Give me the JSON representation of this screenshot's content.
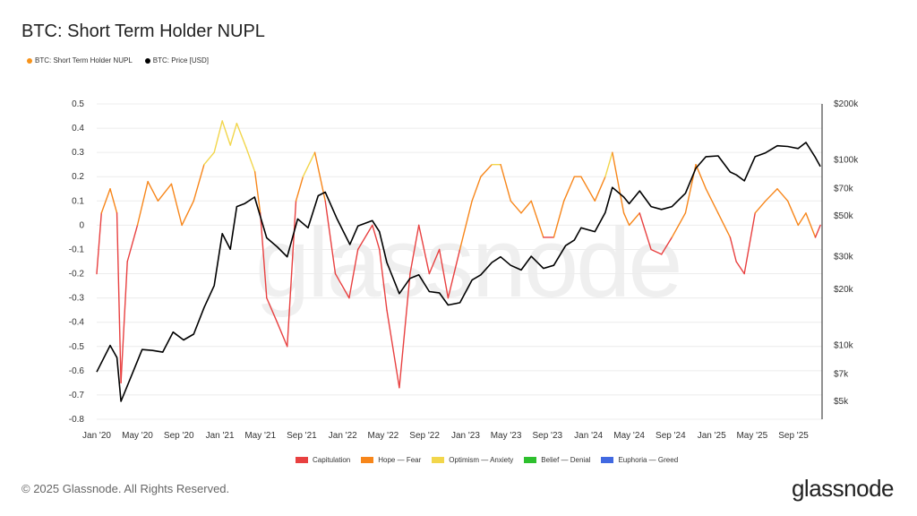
{
  "title": "BTC: Short Term Holder NUPL",
  "legend_top": [
    {
      "label": "BTC: Short Term Holder NUPL",
      "color": "#f7931a"
    },
    {
      "label": "BTC: Price [USD]",
      "color": "#000000"
    }
  ],
  "legend_bottom": [
    {
      "label": "Capitulation",
      "color": "#e84040"
    },
    {
      "label": "Hope — Fear",
      "color": "#f7861a"
    },
    {
      "label": "Optimism — Anxiety",
      "color": "#f2d64b"
    },
    {
      "label": "Belief — Denial",
      "color": "#2ec02e"
    },
    {
      "label": "Euphoria — Greed",
      "color": "#4169e1"
    }
  ],
  "footer": "© 2025 Glassnode. All Rights Reserved.",
  "brand": "glassnode",
  "watermark": "glassnode",
  "chart_data": {
    "type": "line",
    "title": "BTC: Short Term Holder NUPL",
    "x_ticks": [
      "Jan '20",
      "May '20",
      "Sep '20",
      "Jan '21",
      "May '21",
      "Sep '21",
      "Jan '22",
      "May '22",
      "Sep '22",
      "Jan '23",
      "May '23",
      "Sep '23",
      "Jan '24",
      "May '24",
      "Sep '24",
      "Jan '25",
      "May '25",
      "Sep '25"
    ],
    "y_left": {
      "ticks": [
        "0.5",
        "0.4",
        "0.3",
        "0.2",
        "0.1",
        "0",
        "-0.1",
        "-0.2",
        "-0.3",
        "-0.4",
        "-0.5",
        "-0.6",
        "-0.7",
        "-0.8"
      ],
      "range": [
        -0.8,
        0.5
      ]
    },
    "y_right": {
      "scale": "log",
      "ticks": [
        {
          "v": 200000,
          "label": "$200k"
        },
        {
          "v": 100000,
          "label": "$100k"
        },
        {
          "v": 70000,
          "label": "$70k"
        },
        {
          "v": 50000,
          "label": "$50k"
        },
        {
          "v": 30000,
          "label": "$30k"
        },
        {
          "v": 20000,
          "label": "$20k"
        },
        {
          "v": 10000,
          "label": "$10k"
        },
        {
          "v": 7000,
          "label": "$7k"
        },
        {
          "v": 5000,
          "label": "$5k"
        }
      ],
      "range": [
        5000,
        200000
      ]
    },
    "x_range": [
      "2020-01-01",
      "2025-11-25"
    ],
    "zones": [
      {
        "name": "Capitulation",
        "max": 0
      },
      {
        "name": "Hope — Fear",
        "max": 0.25
      },
      {
        "name": "Optimism — Anxiety",
        "max": 0.5
      },
      {
        "name": "Belief — Denial",
        "max": 0.75
      },
      {
        "name": "Euphoria — Greed",
        "max": 1
      }
    ],
    "series": [
      {
        "name": "BTC: Short Term Holder NUPL",
        "axis": "left",
        "points": [
          [
            "2020-01-01",
            -0.2
          ],
          [
            "2020-01-15",
            0.05
          ],
          [
            "2020-02-10",
            0.15
          ],
          [
            "2020-03-01",
            0.05
          ],
          [
            "2020-03-13",
            -0.65
          ],
          [
            "2020-04-01",
            -0.15
          ],
          [
            "2020-05-01",
            0.0
          ],
          [
            "2020-06-01",
            0.18
          ],
          [
            "2020-07-01",
            0.1
          ],
          [
            "2020-08-10",
            0.17
          ],
          [
            "2020-09-10",
            0.0
          ],
          [
            "2020-10-15",
            0.1
          ],
          [
            "2020-11-15",
            0.25
          ],
          [
            "2020-12-15",
            0.3
          ],
          [
            "2021-01-08",
            0.43
          ],
          [
            "2021-02-01",
            0.33
          ],
          [
            "2021-02-20",
            0.42
          ],
          [
            "2021-03-20",
            0.32
          ],
          [
            "2021-04-15",
            0.22
          ],
          [
            "2021-05-01",
            0.05
          ],
          [
            "2021-05-20",
            -0.3
          ],
          [
            "2021-06-20",
            -0.4
          ],
          [
            "2021-07-20",
            -0.5
          ],
          [
            "2021-08-15",
            0.1
          ],
          [
            "2021-09-05",
            0.2
          ],
          [
            "2021-10-10",
            0.3
          ],
          [
            "2021-11-10",
            0.1
          ],
          [
            "2021-12-10",
            -0.2
          ],
          [
            "2022-01-20",
            -0.3
          ],
          [
            "2022-02-15",
            -0.1
          ],
          [
            "2022-03-30",
            0.0
          ],
          [
            "2022-04-20",
            -0.1
          ],
          [
            "2022-05-12",
            -0.35
          ],
          [
            "2022-06-18",
            -0.67
          ],
          [
            "2022-07-20",
            -0.2
          ],
          [
            "2022-08-15",
            0.0
          ],
          [
            "2022-09-15",
            -0.2
          ],
          [
            "2022-10-15",
            -0.1
          ],
          [
            "2022-11-10",
            -0.3
          ],
          [
            "2022-12-15",
            -0.1
          ],
          [
            "2023-01-20",
            0.1
          ],
          [
            "2023-02-15",
            0.2
          ],
          [
            "2023-03-20",
            0.25
          ],
          [
            "2023-04-15",
            0.25
          ],
          [
            "2023-05-15",
            0.1
          ],
          [
            "2023-06-15",
            0.05
          ],
          [
            "2023-07-15",
            0.1
          ],
          [
            "2023-08-20",
            -0.05
          ],
          [
            "2023-09-20",
            -0.05
          ],
          [
            "2023-10-20",
            0.1
          ],
          [
            "2023-11-20",
            0.2
          ],
          [
            "2023-12-10",
            0.2
          ],
          [
            "2024-01-20",
            0.1
          ],
          [
            "2024-02-20",
            0.2
          ],
          [
            "2024-03-12",
            0.3
          ],
          [
            "2024-04-15",
            0.05
          ],
          [
            "2024-05-01",
            0.0
          ],
          [
            "2024-06-01",
            0.05
          ],
          [
            "2024-07-05",
            -0.1
          ],
          [
            "2024-08-05",
            -0.12
          ],
          [
            "2024-09-05",
            -0.05
          ],
          [
            "2024-10-15",
            0.05
          ],
          [
            "2024-11-15",
            0.25
          ],
          [
            "2024-12-15",
            0.15
          ],
          [
            "2025-01-20",
            0.05
          ],
          [
            "2025-02-25",
            -0.05
          ],
          [
            "2025-03-15",
            -0.15
          ],
          [
            "2025-04-08",
            -0.2
          ],
          [
            "2025-05-10",
            0.05
          ],
          [
            "2025-06-10",
            0.1
          ],
          [
            "2025-07-15",
            0.15
          ],
          [
            "2025-08-15",
            0.1
          ],
          [
            "2025-09-15",
            0.0
          ],
          [
            "2025-10-08",
            0.05
          ],
          [
            "2025-11-05",
            -0.05
          ],
          [
            "2025-11-20",
            0.0
          ]
        ]
      },
      {
        "name": "BTC: Price [USD]",
        "axis": "right",
        "points": [
          [
            "2020-01-01",
            7200
          ],
          [
            "2020-02-10",
            10000
          ],
          [
            "2020-03-01",
            8600
          ],
          [
            "2020-03-13",
            5000
          ],
          [
            "2020-04-15",
            7000
          ],
          [
            "2020-05-15",
            9500
          ],
          [
            "2020-06-15",
            9400
          ],
          [
            "2020-07-15",
            9200
          ],
          [
            "2020-08-15",
            11800
          ],
          [
            "2020-09-15",
            10700
          ],
          [
            "2020-10-15",
            11500
          ],
          [
            "2020-11-15",
            16000
          ],
          [
            "2020-12-15",
            21000
          ],
          [
            "2021-01-08",
            40000
          ],
          [
            "2021-02-01",
            33000
          ],
          [
            "2021-02-20",
            56000
          ],
          [
            "2021-03-15",
            58000
          ],
          [
            "2021-04-14",
            63000
          ],
          [
            "2021-05-20",
            38000
          ],
          [
            "2021-06-20",
            34000
          ],
          [
            "2021-07-20",
            30000
          ],
          [
            "2021-08-20",
            48000
          ],
          [
            "2021-09-20",
            43000
          ],
          [
            "2021-10-20",
            64000
          ],
          [
            "2021-11-10",
            67000
          ],
          [
            "2021-12-15",
            48000
          ],
          [
            "2022-01-22",
            35000
          ],
          [
            "2022-02-15",
            44000
          ],
          [
            "2022-03-30",
            47000
          ],
          [
            "2022-04-20",
            41000
          ],
          [
            "2022-05-12",
            28000
          ],
          [
            "2022-06-18",
            19000
          ],
          [
            "2022-07-20",
            23000
          ],
          [
            "2022-08-15",
            24000
          ],
          [
            "2022-09-15",
            19500
          ],
          [
            "2022-10-15",
            19200
          ],
          [
            "2022-11-10",
            16500
          ],
          [
            "2022-12-15",
            17000
          ],
          [
            "2023-01-20",
            22500
          ],
          [
            "2023-02-15",
            24000
          ],
          [
            "2023-03-20",
            28000
          ],
          [
            "2023-04-15",
            30000
          ],
          [
            "2023-05-15",
            27000
          ],
          [
            "2023-06-15",
            25500
          ],
          [
            "2023-07-15",
            30200
          ],
          [
            "2023-08-20",
            26000
          ],
          [
            "2023-09-20",
            27000
          ],
          [
            "2023-10-25",
            34500
          ],
          [
            "2023-11-20",
            37000
          ],
          [
            "2023-12-10",
            43000
          ],
          [
            "2024-01-20",
            41000
          ],
          [
            "2024-02-20",
            52000
          ],
          [
            "2024-03-12",
            71000
          ],
          [
            "2024-04-15",
            63000
          ],
          [
            "2024-05-01",
            58000
          ],
          [
            "2024-06-01",
            68000
          ],
          [
            "2024-07-05",
            56000
          ],
          [
            "2024-08-05",
            54000
          ],
          [
            "2024-09-05",
            56000
          ],
          [
            "2024-10-15",
            66000
          ],
          [
            "2024-11-15",
            90000
          ],
          [
            "2024-12-15",
            104000
          ],
          [
            "2025-01-20",
            105000
          ],
          [
            "2025-02-25",
            86000
          ],
          [
            "2025-03-15",
            83000
          ],
          [
            "2025-04-08",
            77000
          ],
          [
            "2025-05-10",
            104000
          ],
          [
            "2025-06-10",
            109000
          ],
          [
            "2025-07-15",
            119000
          ],
          [
            "2025-08-15",
            118000
          ],
          [
            "2025-09-15",
            115000
          ],
          [
            "2025-10-08",
            124000
          ],
          [
            "2025-11-05",
            103000
          ],
          [
            "2025-11-20",
            92000
          ]
        ]
      }
    ]
  }
}
